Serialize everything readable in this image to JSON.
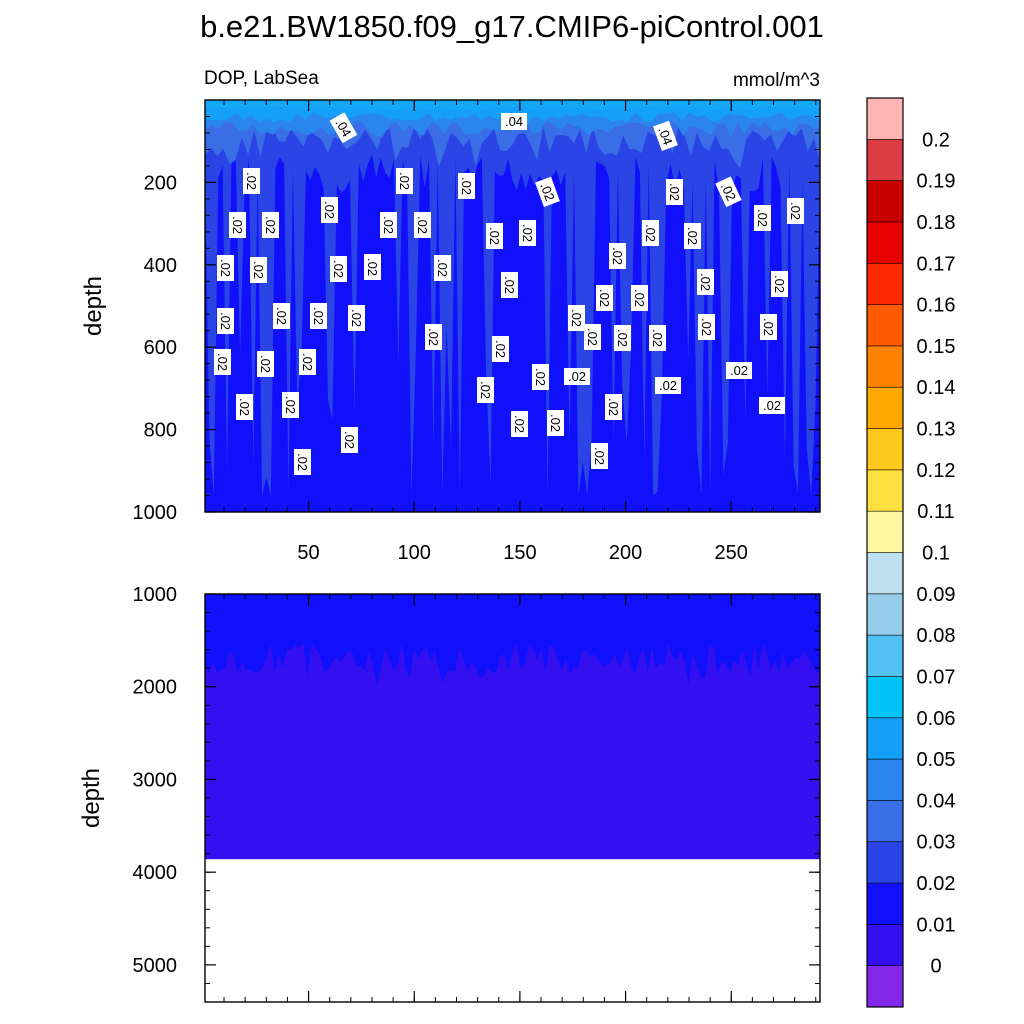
{
  "chart_data": {
    "type": "contour",
    "title": "b.e21.BW1850.f09_g17.CMIP6-piControl.001",
    "left_label": "DOP, LabSea",
    "right_label": "mmol/m^3",
    "x_ticks": [
      50,
      100,
      150,
      200,
      250
    ],
    "xlim": [
      1,
      292
    ],
    "panels": [
      {
        "name": "upper",
        "ylabel": "depth",
        "ylim": [
          0,
          1000
        ],
        "y_ticks": [
          200,
          400,
          600,
          800,
          1000
        ],
        "bottom_fill": "#1010fa",
        "depth_max": 1000,
        "contour_labels": [
          ".04",
          ".04",
          ".04",
          ".02"
        ]
      },
      {
        "name": "lower",
        "ylabel": "depth",
        "ylim": [
          1000,
          5400
        ],
        "y_ticks": [
          1000,
          2000,
          3000,
          4000,
          5000
        ],
        "bottom_fill": "#3410f0",
        "depth_max": 3860
      }
    ],
    "colorbar": {
      "levels": [
        "0",
        "0.01",
        "0.02",
        "0.03",
        "0.04",
        "0.05",
        "0.06",
        "0.07",
        "0.08",
        "0.09",
        "0.1",
        "0.11",
        "0.12",
        "0.13",
        "0.14",
        "0.15",
        "0.16",
        "0.17",
        "0.18",
        "0.19",
        "0.2"
      ],
      "colors": [
        "#8228e8",
        "#3410f0",
        "#1010fa",
        "#2a44e6",
        "#3a6ee6",
        "#2a86ee",
        "#14a0f8",
        "#00c4f8",
        "#52c2f2",
        "#96ccea",
        "#bce0f0",
        "#fff8a0",
        "#ffe040",
        "#ffc81c",
        "#ffa800",
        "#ff8200",
        "#ff5a00",
        "#ff2a00",
        "#e60000",
        "#c80000",
        "#dc3c44",
        "#ffb4b4"
      ]
    }
  }
}
